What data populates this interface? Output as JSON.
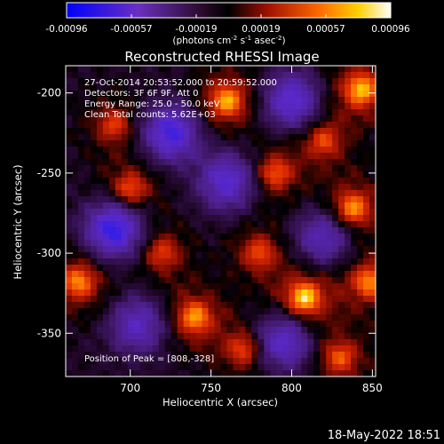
{
  "chart_data": {
    "type": "heatmap",
    "title": "Reconstructed RHESSI Image",
    "xlabel": "Heliocentric X (arcsec)",
    "ylabel": "Heliocentric Y (arcsec)",
    "xlim": [
      660,
      852
    ],
    "ylim": [
      -377,
      -183
    ],
    "xticks": [
      700,
      750,
      800,
      850
    ],
    "yticks": [
      -200,
      -250,
      -300,
      -350
    ],
    "colorbar": {
      "min": -0.00096,
      "max": 0.00096,
      "ticks": [
        "-0.00096",
        "-0.00057",
        "-0.00019",
        "0.00019",
        "0.00057",
        "0.00096"
      ],
      "units_label": "(photons cm",
      "units_sup1": "-2",
      "units_mid": " s",
      "units_sup2": "-1",
      "units_mid2": " asec",
      "units_sup3": "-2",
      "units_end": ")"
    },
    "annotations": [
      "27-Oct-2014 20:53:52.000 to 20:59:52.000",
      "Detectors: 3F 6F 9F, Att 0",
      "Energy Range: 25.0 - 50.0 keV",
      "Clean    Total counts: 5.62E+03"
    ],
    "peak_label": "Position of Peak = [808,-328]",
    "peak": [
      808,
      -328
    ],
    "hotspots": [
      {
        "x": 808,
        "y": -328,
        "v": 1.0
      },
      {
        "x": 843,
        "y": -198,
        "v": 0.9
      },
      {
        "x": 760,
        "y": -205,
        "v": 0.85
      },
      {
        "x": 838,
        "y": -272,
        "v": 0.8
      },
      {
        "x": 668,
        "y": -318,
        "v": 0.75
      },
      {
        "x": 740,
        "y": -340,
        "v": 0.8
      },
      {
        "x": 848,
        "y": -318,
        "v": 0.75
      },
      {
        "x": 700,
        "y": -260,
        "v": 0.6
      },
      {
        "x": 790,
        "y": -250,
        "v": 0.6
      },
      {
        "x": 780,
        "y": -300,
        "v": 0.55
      },
      {
        "x": 690,
        "y": -220,
        "v": 0.5
      },
      {
        "x": 820,
        "y": -230,
        "v": 0.55
      },
      {
        "x": 720,
        "y": -300,
        "v": 0.5
      },
      {
        "x": 770,
        "y": -360,
        "v": 0.55
      },
      {
        "x": 830,
        "y": -365,
        "v": 0.6
      }
    ],
    "coldspots": [
      {
        "x": 690,
        "y": -285,
        "v": 0.8
      },
      {
        "x": 725,
        "y": -225,
        "v": 0.7
      },
      {
        "x": 760,
        "y": -255,
        "v": 0.6
      },
      {
        "x": 795,
        "y": -355,
        "v": 0.6
      },
      {
        "x": 705,
        "y": -345,
        "v": 0.5
      },
      {
        "x": 800,
        "y": -205,
        "v": 0.6
      },
      {
        "x": 820,
        "y": -290,
        "v": 0.5
      }
    ]
  },
  "footer": {
    "timestamp": "18-May-2022 18:51"
  }
}
